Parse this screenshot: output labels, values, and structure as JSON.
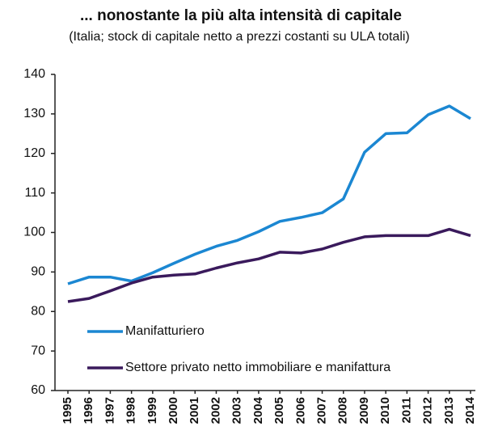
{
  "chart_data": {
    "type": "line",
    "title": "... nonostante la più alta intensità di capitale",
    "subtitle": "(Italia; stock di capitale netto a prezzi costanti su ULA totali)",
    "categories": [
      "1995",
      "1996",
      "1997",
      "1998",
      "1999",
      "2000",
      "2001",
      "2002",
      "2003",
      "2004",
      "2005",
      "2006",
      "2007",
      "2008",
      "2009",
      "2010",
      "2011",
      "2012",
      "2013",
      "2014"
    ],
    "series": [
      {
        "name": "Manifatturiero",
        "color": "#1b87d2",
        "values": [
          87,
          88.7,
          88.7,
          87.7,
          89.8,
          92.2,
          94.5,
          96.5,
          98,
          100.2,
          102.8,
          103.8,
          105,
          108.5,
          120.3,
          125,
          125.2,
          129.8,
          132,
          128.8
        ]
      },
      {
        "name": "Settore privato netto immobiliare e manifattura",
        "color": "#3a1a5c",
        "values": [
          82.5,
          83.3,
          85.2,
          87.2,
          88.7,
          89.2,
          89.5,
          91,
          92.3,
          93.3,
          95,
          94.8,
          95.8,
          97.5,
          98.9,
          99.2,
          99.2,
          99.2,
          100.8,
          99.2
        ]
      }
    ],
    "ylim": [
      60,
      140
    ],
    "yticks": [
      60,
      70,
      80,
      90,
      100,
      110,
      120,
      130,
      140
    ],
    "grid": false,
    "legend": "lower left"
  }
}
